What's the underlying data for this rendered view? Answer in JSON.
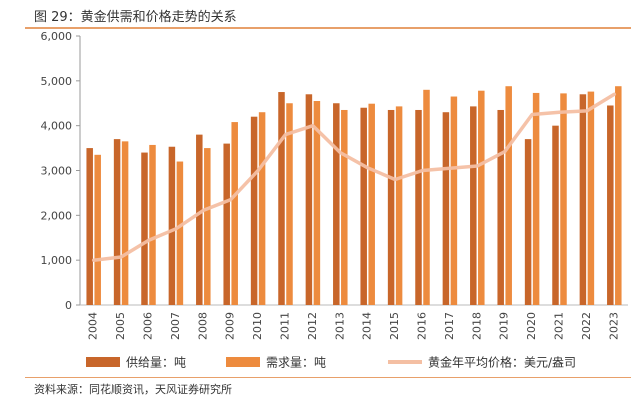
{
  "figure": {
    "title": "图 29：黄金供需和价格走势的关系",
    "source": "资料来源：同花顺资讯，天风证券研究所"
  },
  "chart_data": {
    "type": "bar",
    "categories": [
      "2004",
      "2005",
      "2006",
      "2007",
      "2008",
      "2009",
      "2010",
      "2011",
      "2012",
      "2013",
      "2014",
      "2015",
      "2016",
      "2017",
      "2018",
      "2019",
      "2020",
      "2021",
      "2022",
      "2023"
    ],
    "series": [
      {
        "name": "供给量：吨",
        "type": "bar",
        "color": "#c8662a",
        "values": [
          3500,
          3700,
          3400,
          3530,
          3800,
          3600,
          4200,
          4750,
          4700,
          4500,
          4400,
          4350,
          4350,
          4300,
          4430,
          4350,
          3700,
          4000,
          4700,
          4450
        ]
      },
      {
        "name": "需求量：吨",
        "type": "bar",
        "color": "#ed8b3e",
        "values": [
          3350,
          3650,
          3570,
          3200,
          3500,
          4080,
          4300,
          4500,
          4550,
          4350,
          4490,
          4430,
          4800,
          4650,
          4780,
          4880,
          4730,
          4720,
          4760,
          4880
        ]
      },
      {
        "name": "黄金年平均价格：美元/盎司",
        "type": "line",
        "color": "#f4bfa3",
        "values": [
          1000,
          1070,
          1440,
          1700,
          2110,
          2350,
          3000,
          3800,
          4000,
          3400,
          3060,
          2800,
          3000,
          3050,
          3100,
          3420,
          4250,
          4300,
          4330,
          4700
        ]
      }
    ],
    "yticks": [
      "0",
      "1,000",
      "2,000",
      "3,000",
      "4,000",
      "5,000",
      "6,000"
    ],
    "ylim": [
      0,
      6000
    ],
    "grid": false,
    "legend": "bottom"
  }
}
